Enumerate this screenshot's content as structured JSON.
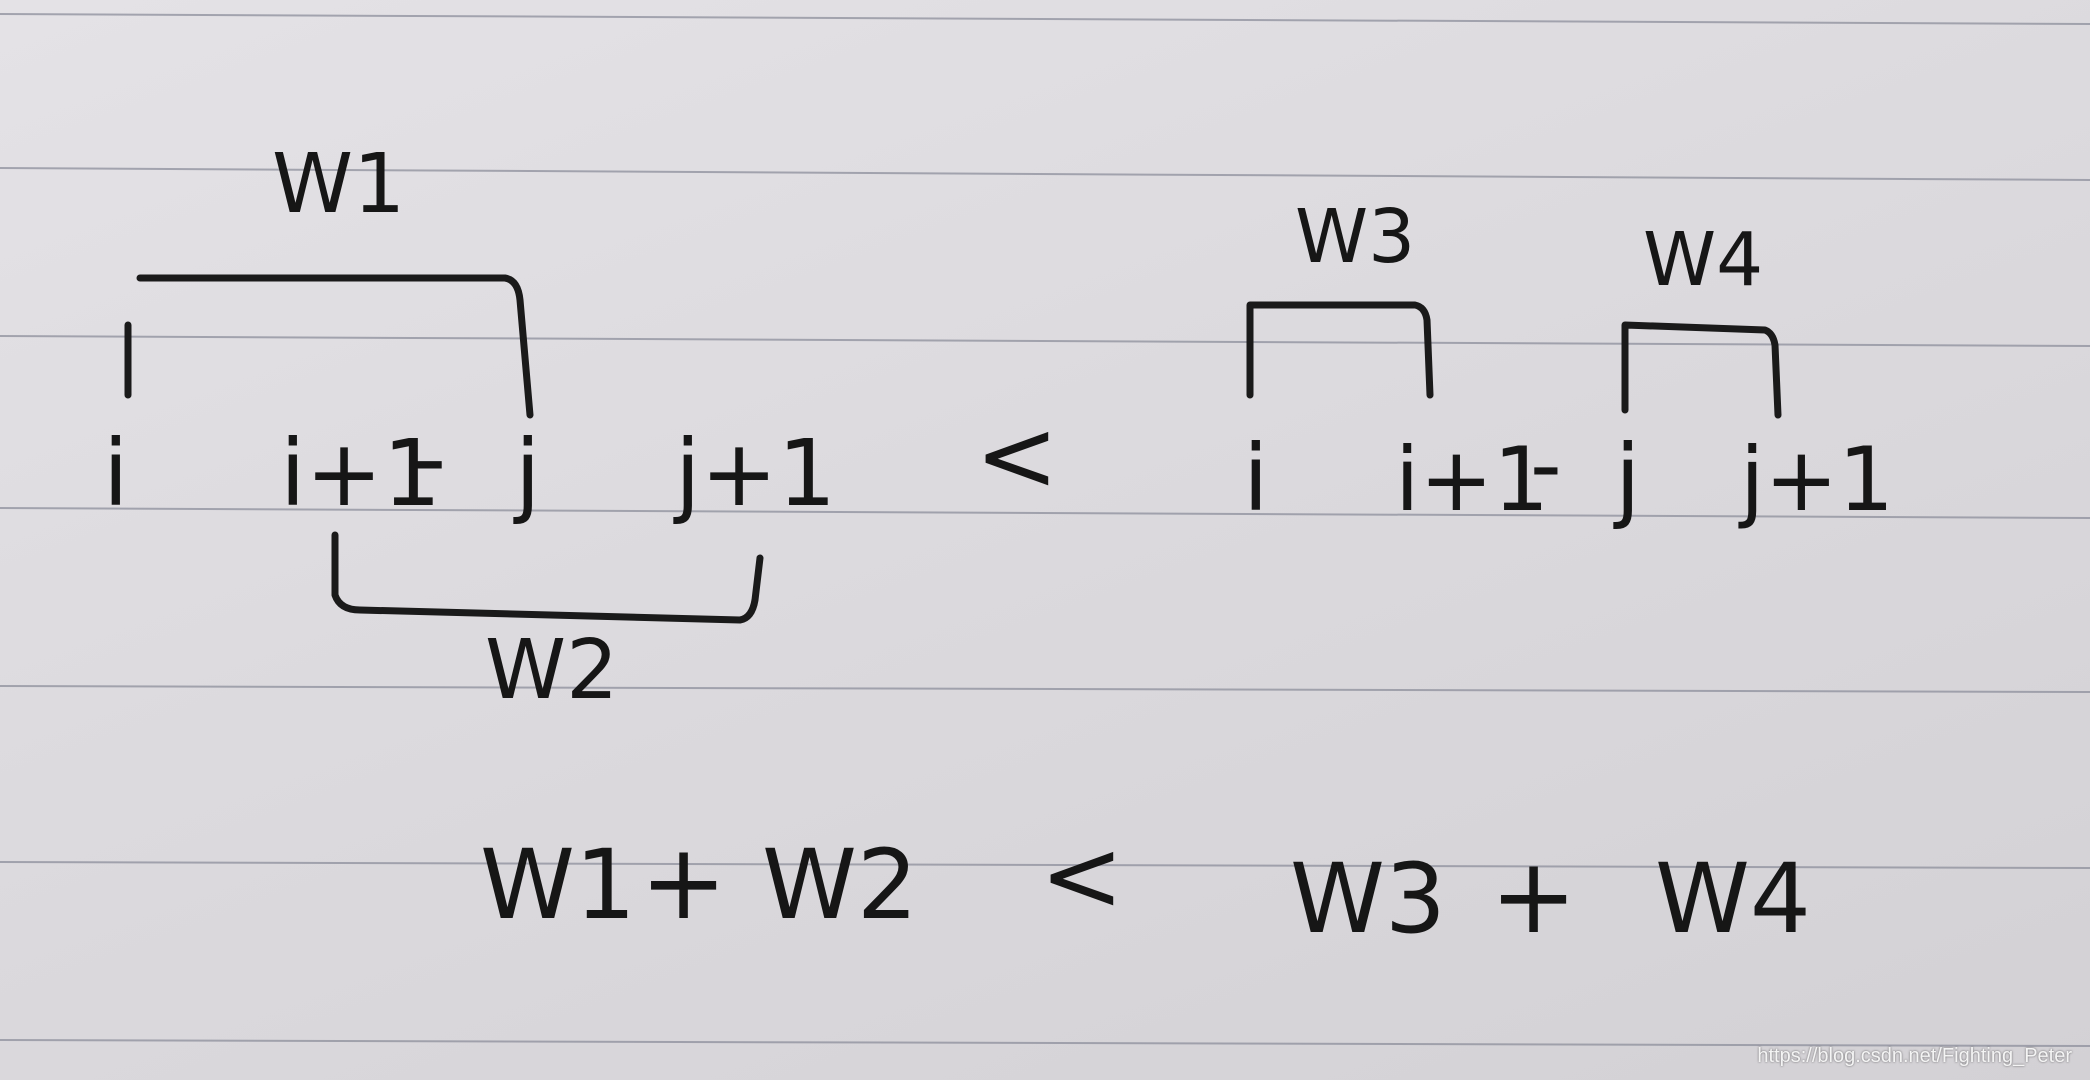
{
  "left_group": {
    "labels": {
      "i": "i",
      "i1": "i+1",
      "dash": "-",
      "j": "j",
      "j1": "j+1"
    },
    "bracket_top_label": "W1",
    "bracket_bottom_label": "W2"
  },
  "less_than_top": "<",
  "right_group": {
    "labels": {
      "i": "i",
      "i1": "i+1",
      "dash": "-",
      "j": "j",
      "j1": "j+1"
    },
    "bracket_a_label": "W3",
    "bracket_b_label": "W4"
  },
  "equation": {
    "w1": "W1",
    "plus_left": "+",
    "w2": "W2",
    "less_than": "<",
    "w3": "W3",
    "plus_right": "+",
    "w4": "W4"
  },
  "watermark": "https://blog.csdn.net/Fighting_Peter"
}
